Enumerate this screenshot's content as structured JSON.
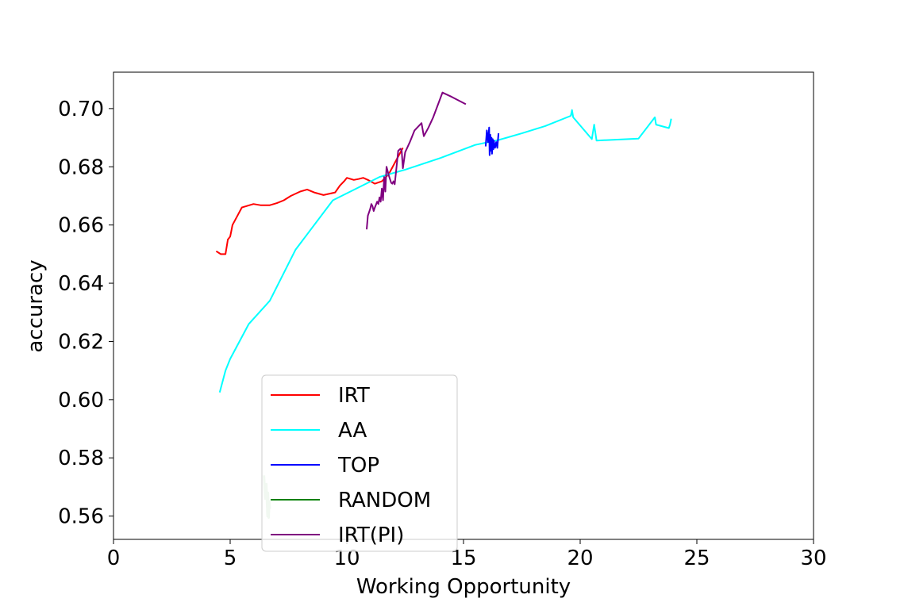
{
  "chart_data": {
    "type": "line",
    "title": "",
    "xlabel": "Working Opportunity",
    "ylabel": "accuracy",
    "xlim": [
      0,
      30
    ],
    "ylim": [
      0.552,
      0.7125
    ],
    "xticks": [
      0,
      5,
      10,
      15,
      20,
      25,
      30
    ],
    "yticks": [
      0.56,
      0.58,
      0.6,
      0.62,
      0.64,
      0.66,
      0.68,
      0.7
    ],
    "grid": false,
    "legend_position": "lower-center",
    "series": [
      {
        "name": "IRT",
        "color": "#ff0000",
        "x": [
          4.4,
          4.6,
          4.8,
          4.9,
          5.0,
          5.05,
          5.1,
          5.3,
          5.5,
          5.7,
          6.0,
          6.3,
          6.7,
          7.0,
          7.3,
          7.6,
          8.0,
          8.3,
          8.6,
          9.0,
          9.5,
          9.7,
          9.9,
          10.0,
          10.3,
          10.5,
          10.7,
          10.9,
          11.2,
          11.5,
          11.8,
          12.0,
          12.2,
          12.4
        ],
        "y": [
          0.651,
          0.65,
          0.65,
          0.655,
          0.656,
          0.658,
          0.66,
          0.663,
          0.666,
          0.6665,
          0.6672,
          0.6668,
          0.6668,
          0.6675,
          0.6685,
          0.67,
          0.6715,
          0.6722,
          0.6712,
          0.6703,
          0.6712,
          0.6735,
          0.6752,
          0.6762,
          0.6755,
          0.6758,
          0.6762,
          0.6755,
          0.6742,
          0.675,
          0.6775,
          0.6805,
          0.6835,
          0.6865
        ]
      },
      {
        "name": "AA",
        "color": "#00ffff",
        "x": [
          4.55,
          4.8,
          5.0,
          5.8,
          6.7,
          7.8,
          9.4,
          11.4,
          12.5,
          14.0,
          15.5,
          16.5,
          17.5,
          18.5,
          19.6,
          19.65,
          19.7,
          20.5,
          20.6,
          20.7,
          22.5,
          23.2,
          23.25,
          23.8,
          23.85,
          23.9
        ],
        "y": [
          0.6025,
          0.61,
          0.614,
          0.626,
          0.634,
          0.6515,
          0.6685,
          0.6765,
          0.679,
          0.683,
          0.6875,
          0.6892,
          0.6915,
          0.694,
          0.6975,
          0.6995,
          0.697,
          0.6895,
          0.6945,
          0.689,
          0.6897,
          0.697,
          0.6945,
          0.6933,
          0.6945,
          0.6965
        ]
      },
      {
        "name": "TOP",
        "color": "#0000ff",
        "x": [
          15.95,
          16.0,
          16.05,
          16.1,
          16.12,
          16.15,
          16.18,
          16.2,
          16.22,
          16.25,
          16.28,
          16.3,
          16.35,
          16.4,
          16.45,
          16.5
        ],
        "y": [
          0.687,
          0.6925,
          0.6885,
          0.6935,
          0.684,
          0.691,
          0.6855,
          0.69,
          0.6845,
          0.6895,
          0.686,
          0.689,
          0.6865,
          0.6885,
          0.6865,
          0.6915
        ]
      },
      {
        "name": "RANDOM",
        "color": "#008000",
        "x": [
          6.45,
          6.5,
          6.55,
          6.6,
          6.62,
          6.65,
          6.68,
          6.7
        ],
        "y": [
          0.574,
          0.566,
          0.571,
          0.56,
          0.568,
          0.5595,
          0.565,
          0.5625
        ]
      },
      {
        "name": "IRT(PI)",
        "color": "#800080",
        "x": [
          10.85,
          10.9,
          11.0,
          11.05,
          11.1,
          11.15,
          11.2,
          11.3,
          11.35,
          11.4,
          11.45,
          11.5,
          11.55,
          11.6,
          11.65,
          11.7,
          11.8,
          11.9,
          11.95,
          12.0,
          12.05,
          12.1,
          12.15,
          12.2,
          12.3,
          12.35,
          12.4,
          12.5,
          12.7,
          12.9,
          13.2,
          13.3,
          13.5,
          13.7,
          14.1,
          14.5,
          15.1
        ],
        "y": [
          0.6585,
          0.6632,
          0.6655,
          0.6672,
          0.6665,
          0.6648,
          0.666,
          0.668,
          0.6672,
          0.6695,
          0.668,
          0.6725,
          0.6685,
          0.6765,
          0.6715,
          0.68,
          0.677,
          0.6745,
          0.6742,
          0.675,
          0.674,
          0.6775,
          0.6815,
          0.6855,
          0.6862,
          0.6855,
          0.6795,
          0.685,
          0.6885,
          0.6925,
          0.695,
          0.6905,
          0.6935,
          0.697,
          0.7055,
          0.704,
          0.7015
        ]
      }
    ]
  }
}
